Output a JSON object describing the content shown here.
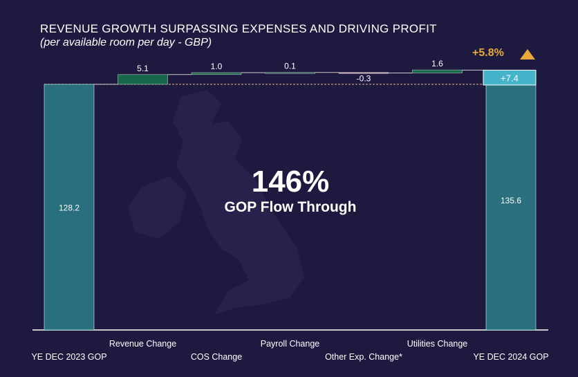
{
  "chart_data": {
    "type": "waterfall",
    "title": "REVENUE GROWTH SURPASSING EXPENSES AND DRIVING PROFIT",
    "subtitle": "(per available room per day - GBP)",
    "categories": [
      "YE DEC 2023 GOP",
      "Revenue Change",
      "COS Change",
      "Payroll Change",
      "Other Exp. Change*",
      "Utilities Change",
      "YE DEC 2024 GOP"
    ],
    "values": [
      128.2,
      5.1,
      1.0,
      0.1,
      -0.3,
      1.6,
      135.6
    ],
    "labels": [
      "128.2",
      "5.1",
      "1.0",
      "0.1",
      "-0.3",
      "1.6",
      "135.6"
    ],
    "kinds": [
      "total",
      "delta",
      "delta",
      "delta",
      "delta",
      "delta",
      "total"
    ],
    "total_change_label": "+7.4",
    "total_change": 7.4,
    "ylim": [
      0,
      140
    ],
    "colors": {
      "total": "#2a6f7e",
      "increase": "#17694c",
      "decrease": "#e8b4c4",
      "change": "#45b3c9"
    }
  },
  "kpi": {
    "change_pct": "+5.8%",
    "flow_value": "146%",
    "flow_label": "GOP Flow Through"
  }
}
